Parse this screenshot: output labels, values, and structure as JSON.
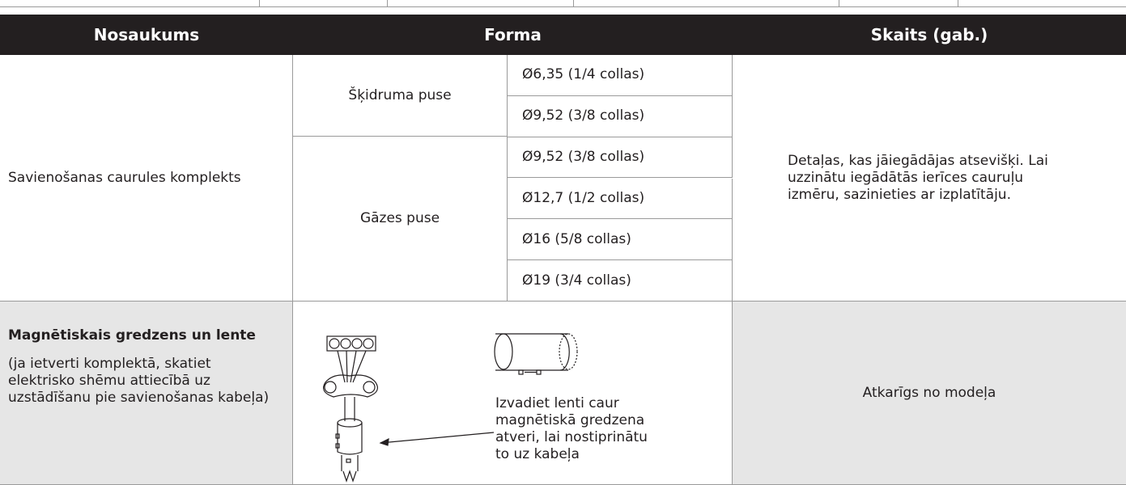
{
  "header": {
    "columns": [
      "Nosaukums",
      "Forma",
      "Skaits (gab.)"
    ]
  },
  "table": {
    "rows": [
      {
        "name": "Savienošanas caurules komplekts",
        "groups": [
          {
            "side": "Šķidruma puse",
            "sizes": [
              "Ø6,35 (1/4 collas)",
              "Ø9,52 (3/8 collas)"
            ]
          },
          {
            "side": "Gāzes puse",
            "sizes": [
              "Ø9,52 (3/8 collas)",
              "Ø12,7 (1/2 collas)",
              "Ø16 (5/8 collas)",
              "Ø19 (3/4 collas)"
            ]
          }
        ],
        "quantity": "Detaļas, kas jāiegādājas atsevišķi. Lai uzzinātu iegādātās ierīces cauruļu izmēru, sazinieties ar izplatītāju."
      },
      {
        "name": "Magnētiskais gredzens un lente",
        "note": "(ja ietverti komplektā, skatiet elektrisko shēmu attiecībā uz uzstādīšanu pie savienošanas kabeļa)",
        "caption": "Izvadiet lenti caur magnētiskā gredzena atveri, lai nostiprinātu to uz kabeļa",
        "quantity": "Atkarīgs no modeļa"
      }
    ]
  }
}
